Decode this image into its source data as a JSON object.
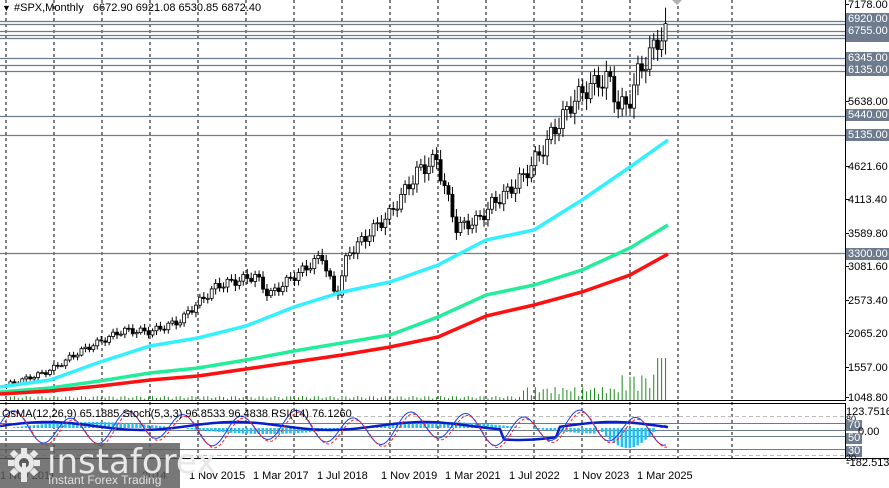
{
  "header": {
    "symbol_timeframe": "#SPX,Monthly",
    "ohlc": "6672.90 6921.08 6530.85 6872.40",
    "menu_arrow": "▼"
  },
  "price_axis": {
    "ticks": [
      "7178.00",
      "5638.00",
      "4621.60",
      "4113.40",
      "3589.80",
      "3081.60",
      "2573.40",
      "2065.20",
      "1557.00",
      "1048.80"
    ],
    "levels": [
      "6920.00",
      "6755.00",
      "6345.00",
      "6135.00",
      "5440.00",
      "5135.00",
      "3300.00"
    ]
  },
  "indicator": {
    "label": "OsMA(12,26,9) 65.1885  Stoch(5,3,3) 96.8533 96.4838  RSI(14) 76.1260",
    "axis_max": "123.7516",
    "axis_min": "-182.5137",
    "levels": [
      "80",
      "70",
      "50",
      "30",
      "20"
    ],
    "zero_label": "0.00"
  },
  "time_axis": {
    "labels": [
      "1 Nov 2011",
      "2014",
      "1 Nov 2015",
      "1 Mar 2017",
      "1 Jul 2018",
      "1 Nov 2019",
      "1 Mar 2021",
      "1 Jul 2022",
      "1 Nov 2023",
      "1 Mar 2025"
    ]
  },
  "watermark": {
    "brand": "instaforex",
    "tagline": "Instant Forex Trading"
  },
  "colors": {
    "ma_fast": "#33f0ff",
    "ma_mid": "#22ee99",
    "ma_slow": "#ff1010",
    "volume": "#1a8c1a",
    "osma": "#22c0f0",
    "rsi": "#0a1ec8",
    "stoch_main": "#1a3cff",
    "stoch_signal": "#ff2020",
    "level_line": "#6d7b8d"
  }
}
